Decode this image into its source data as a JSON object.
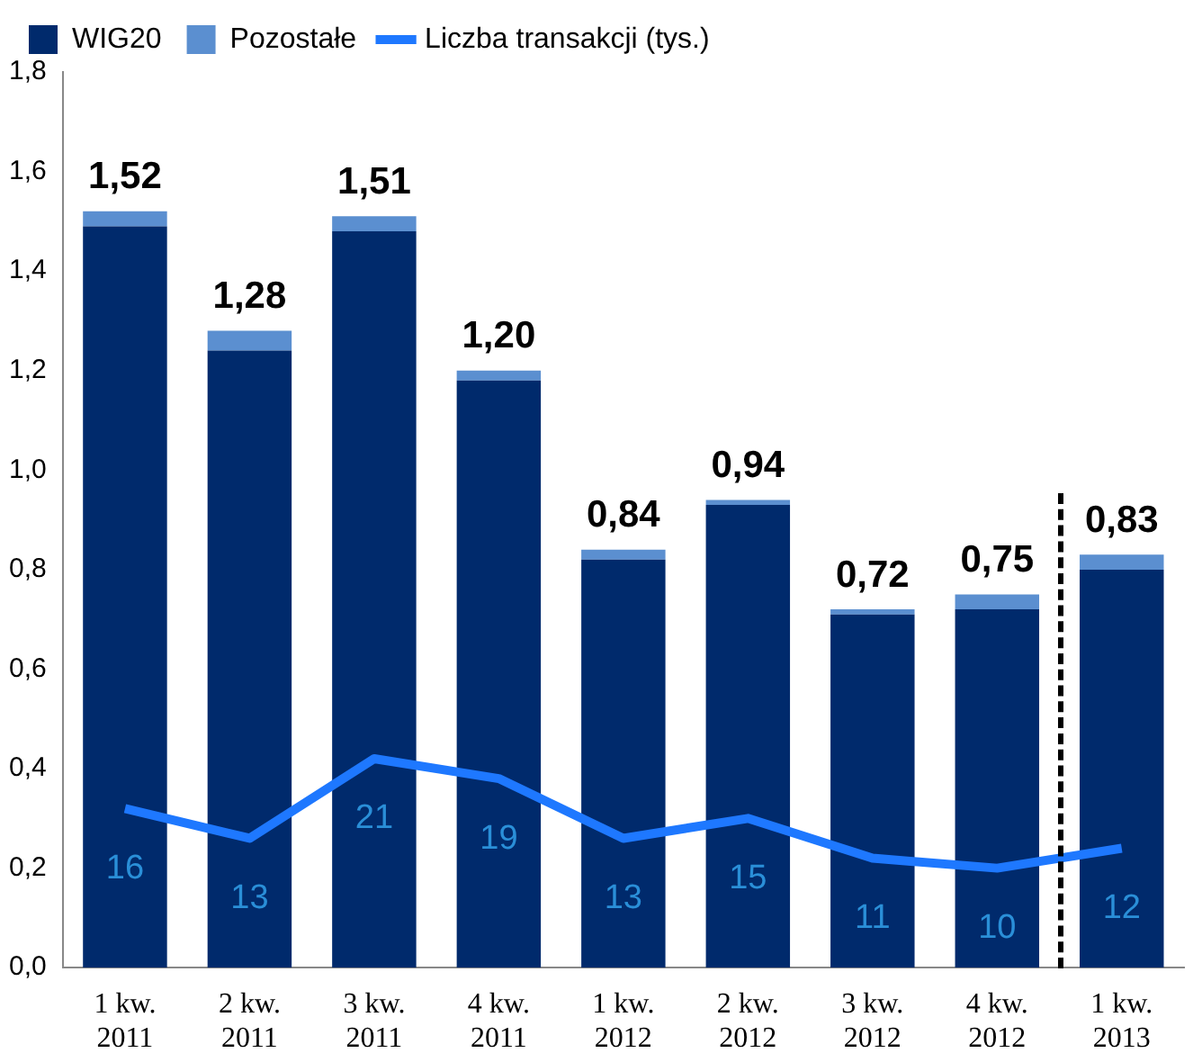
{
  "chart_data": {
    "type": "bar",
    "stacked": true,
    "categories": [
      "1 kw.\n2011",
      "2 kw.\n2011",
      "3 kw.\n2011",
      "4 kw.\n2011",
      "1 kw.\n2012",
      "2 kw.\n2012",
      "3 kw.\n2012",
      "4 kw.\n2012",
      "1 kw.\n2013"
    ],
    "series": [
      {
        "name": "WIG20",
        "color": "#002a6c",
        "values": [
          1.49,
          1.24,
          1.48,
          1.18,
          0.82,
          0.93,
          0.71,
          0.72,
          0.8
        ]
      },
      {
        "name": "Pozostałe",
        "color": "#5b8fd0",
        "values": [
          0.03,
          0.04,
          0.03,
          0.02,
          0.02,
          0.01,
          0.01,
          0.03,
          0.03
        ]
      },
      {
        "name": "Liczba transakcji (tys.)",
        "type": "line",
        "axis": "y2",
        "color": "#1e78ff",
        "values": [
          16,
          13,
          21,
          19,
          13,
          15,
          11,
          10,
          12
        ],
        "value_labels": [
          "16",
          "13",
          "21",
          "19",
          "13",
          "15",
          "11",
          "10",
          "12"
        ]
      }
    ],
    "totals": [
      "1,52",
      "1,28",
      "1,51",
      "1,20",
      "0,84",
      "0,94",
      "0,72",
      "0,75",
      "0,83"
    ],
    "ylim": [
      0,
      1.8
    ],
    "yticks": [
      {
        "value": 0,
        "label": "0,0"
      },
      {
        "value": 0.2,
        "label": "0,2"
      },
      {
        "value": 0.4,
        "label": "0,4"
      },
      {
        "value": 0.6,
        "label": "0,6"
      },
      {
        "value": 0.8,
        "label": "0,8"
      },
      {
        "value": 1.0,
        "label": "1,0"
      },
      {
        "value": 1.2,
        "label": "1,2"
      },
      {
        "value": 1.4,
        "label": "1,4"
      },
      {
        "value": 1.6,
        "label": "1,6"
      },
      {
        "value": 1.8,
        "label": "1,8"
      }
    ],
    "y2lim": [
      0,
      90
    ],
    "tick_labels": "xy",
    "grid": false,
    "legend": "top",
    "marker": "none",
    "line_style": "solid"
  }
}
